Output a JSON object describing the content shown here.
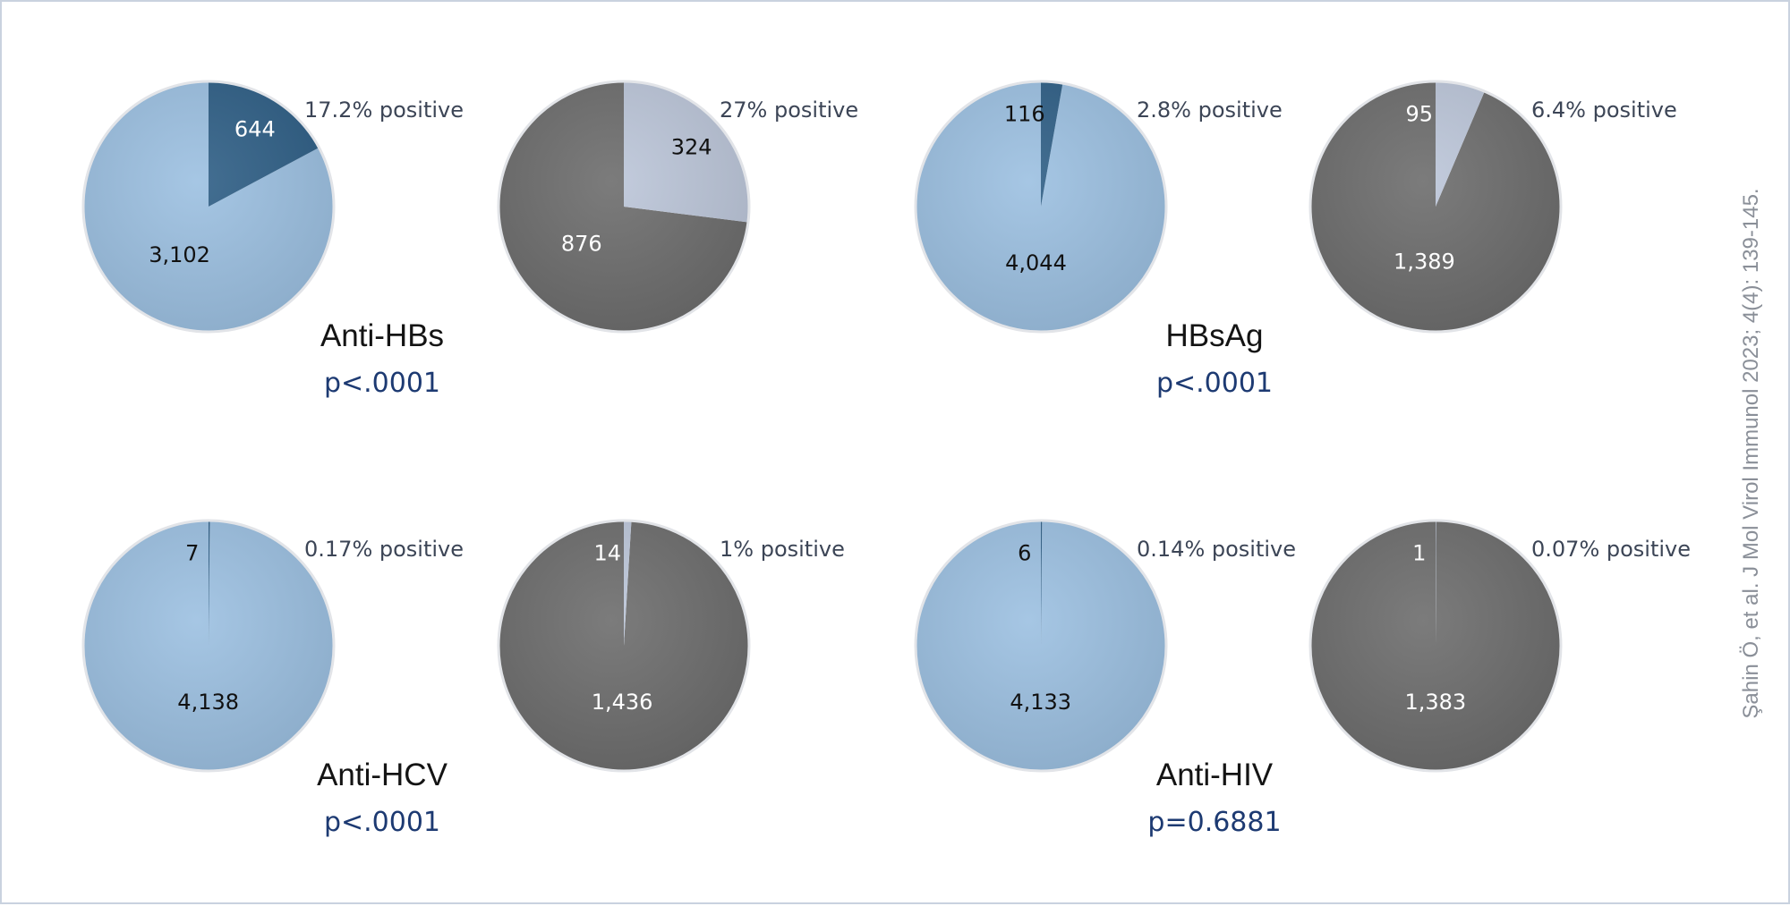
{
  "colors": {
    "blue_negative": "#9cc0e1",
    "blue_positive": "#2f5f86",
    "gray_negative": "#6d6d6d",
    "gray_positive": "#bcc6d9",
    "title": "#141414",
    "pvalue": "#1d3a72",
    "percent_label": "#3c4556",
    "citation": "#8a8f98"
  },
  "citation": "Şahin Ö, et al. J Mol Virol Immunol 2023; 4(4): 139-145.",
  "chart_data": [
    {
      "type": "pie",
      "test": "Anti-HBs",
      "p_value": "p<.0001",
      "pies": [
        {
          "palette": "blue",
          "positive": 644,
          "negative": 3102,
          "positive_label": "644",
          "negative_label": "3,102",
          "percent_label": "17.2% positive"
        },
        {
          "palette": "gray",
          "positive": 324,
          "negative": 876,
          "positive_label": "324",
          "negative_label": "876",
          "percent_label": "27% positive"
        }
      ]
    },
    {
      "type": "pie",
      "test": "HBsAg",
      "p_value": "p<.0001",
      "pies": [
        {
          "palette": "blue",
          "positive": 116,
          "negative": 4044,
          "positive_label": "116",
          "negative_label": "4,044",
          "percent_label": "2.8% positive"
        },
        {
          "palette": "gray",
          "positive": 95,
          "negative": 1389,
          "positive_label": "95",
          "negative_label": "1,389",
          "percent_label": "6.4% positive"
        }
      ]
    },
    {
      "type": "pie",
      "test": "Anti-HCV",
      "p_value": "p<.0001",
      "pies": [
        {
          "palette": "blue",
          "positive": 7,
          "negative": 4138,
          "positive_label": "7",
          "negative_label": "4,138",
          "percent_label": "0.17% positive"
        },
        {
          "palette": "gray",
          "positive": 14,
          "negative": 1436,
          "positive_label": "14",
          "negative_label": "1,436",
          "percent_label": "1% positive"
        }
      ]
    },
    {
      "type": "pie",
      "test": "Anti-HIV",
      "p_value": "p=0.6881",
      "pies": [
        {
          "palette": "blue",
          "positive": 6,
          "negative": 4133,
          "positive_label": "6",
          "negative_label": "4,133",
          "percent_label": "0.14% positive"
        },
        {
          "palette": "gray",
          "positive": 1,
          "negative": 1383,
          "positive_label": "1",
          "negative_label": "1,383",
          "percent_label": "0.07% positive"
        }
      ]
    }
  ]
}
